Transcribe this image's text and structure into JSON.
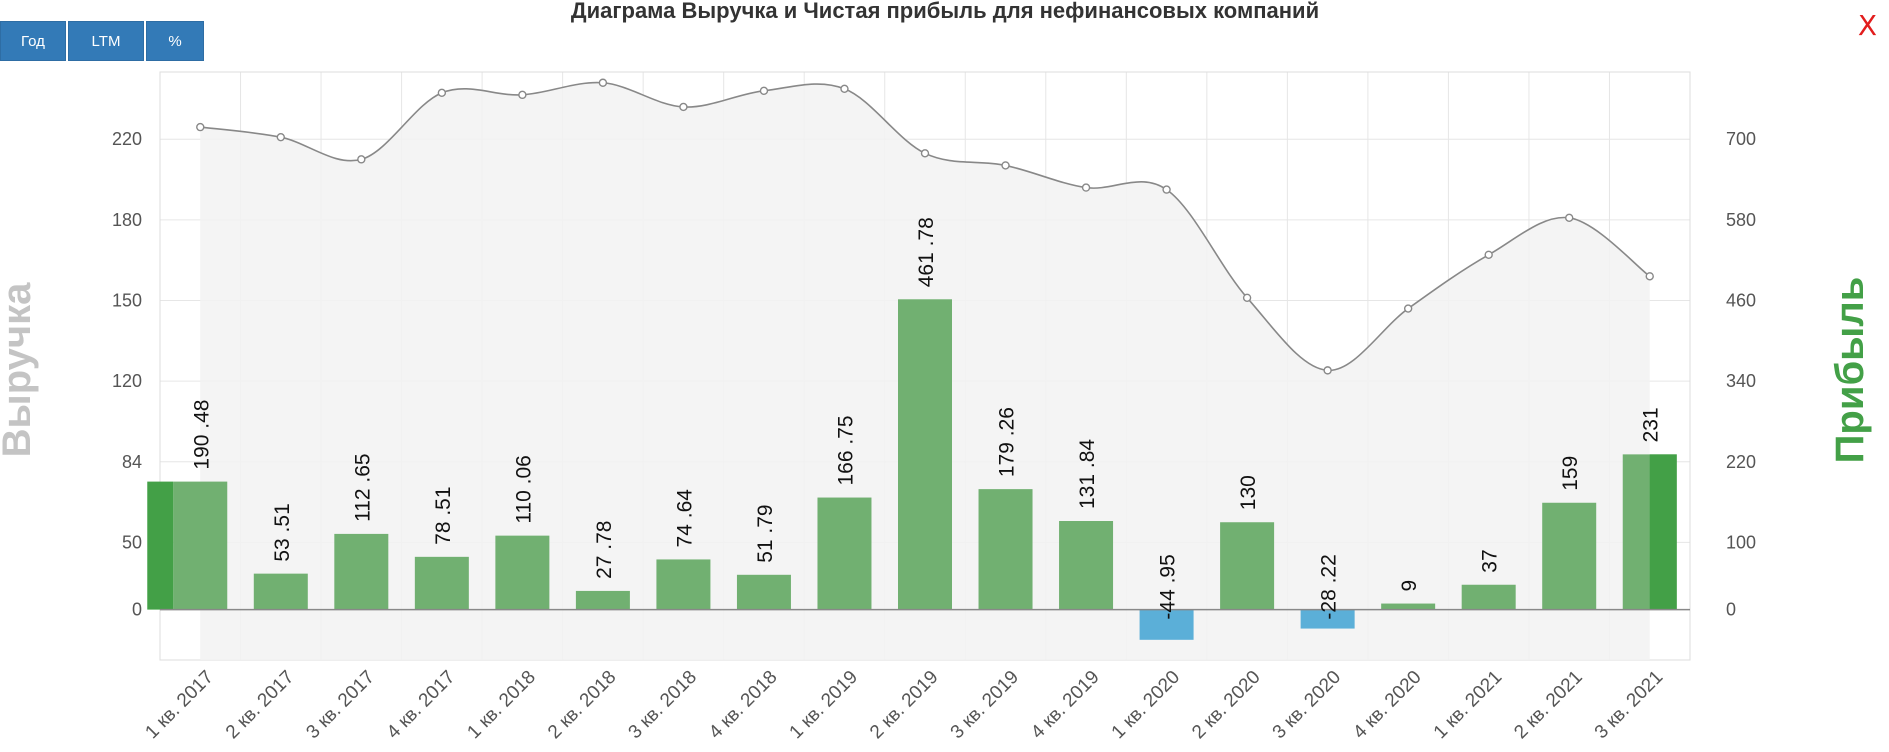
{
  "toolbar": {
    "year_label": "Год",
    "ltm_label": "LTM",
    "percent_label": "%"
  },
  "close_label": "X",
  "chart_data": {
    "type": "bar",
    "title": "Диаграма Выручка и Чистая прибыль для нефинансовых компаний",
    "categories": [
      "1 кв. 2017",
      "2 кв. 2017",
      "3 кв. 2017",
      "4 кв. 2017",
      "1 кв. 2018",
      "2 кв. 2018",
      "3 кв. 2018",
      "4 кв. 2018",
      "1 кв. 2019",
      "2 кв. 2019",
      "3 кв. 2019",
      "4 кв. 2019",
      "1 кв. 2020",
      "2 кв. 2020",
      "3 кв. 2020",
      "4 кв. 2020",
      "1 кв. 2021",
      "2 кв. 2021",
      "3 кв. 2021"
    ],
    "ylabel_left": "Выручка",
    "ylabel_right": "Прибыль",
    "left_ticks": [
      "0",
      "50",
      "84",
      "120",
      "150",
      "180",
      "220"
    ],
    "right_ticks": [
      "0",
      "100",
      "220",
      "340",
      "460",
      "580",
      "700"
    ],
    "ylim_right": [
      -75,
      800
    ],
    "grid": true,
    "series": [
      {
        "name": "Выручка",
        "type": "area",
        "color": "#888888",
        "values": [
          226,
          221,
          210,
          243,
          242,
          248,
          236,
          244,
          245,
          213,
          207,
          196,
          195,
          151,
          124,
          147,
          167,
          181,
          159
        ]
      },
      {
        "name": "Прибыль",
        "type": "bar",
        "color": "#71b071",
        "negative_color": "#5bafd8",
        "values": [
          190.48,
          53.51,
          112.65,
          78.51,
          110.06,
          27.78,
          74.64,
          51.79,
          166.75,
          461.78,
          179.26,
          131.84,
          -44.95,
          130,
          -28.22,
          9,
          37,
          159,
          231
        ],
        "labels": [
          "190 .48",
          "53 .51",
          "112 .65",
          "78 .51",
          "110 .06",
          "27 .78",
          "74 .64",
          "51 .79",
          "166 .75",
          "461 .78",
          "179 .26",
          "131 .84",
          "-44 .95",
          "130",
          "-28 .22",
          "9",
          "37",
          "159",
          "231"
        ]
      }
    ],
    "accent_color": "#43a047"
  }
}
